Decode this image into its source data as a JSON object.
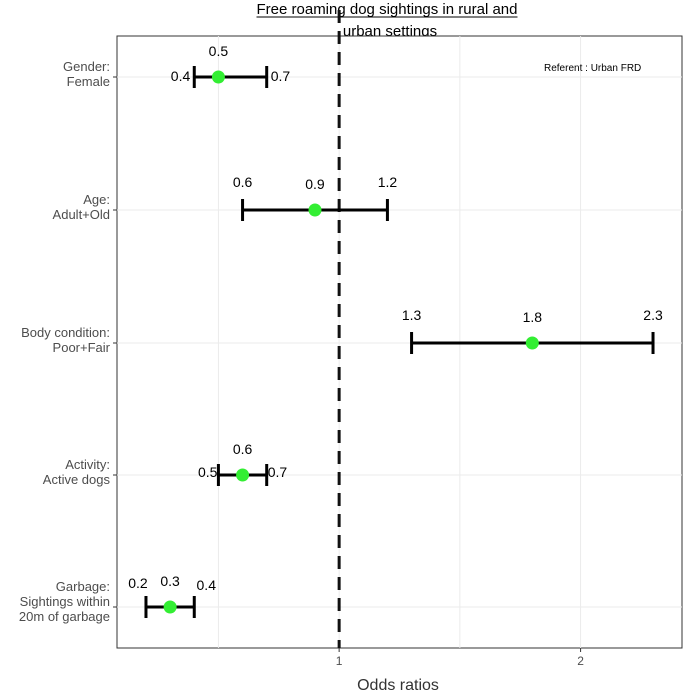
{
  "chart_data": {
    "type": "forest",
    "title_lines": [
      "Free roaming dog sightings in rural and",
      "urban settings"
    ],
    "xlabel": "Odds ratios",
    "xlim": [
      0.08,
      2.42
    ],
    "x_ticks": [
      1,
      2
    ],
    "reference_line": 1,
    "referent_note": "Referent : Urban FRD",
    "point_color": "#33ee33",
    "categories": [
      {
        "label_lines": [
          "Gender:",
          "Female"
        ],
        "estimate": 0.5,
        "lower": 0.4,
        "upper": 0.7,
        "estimate_text": "0.5",
        "lower_text": "0.4",
        "upper_text": "0.7"
      },
      {
        "label_lines": [
          "Age:",
          "Adult+Old"
        ],
        "estimate": 0.9,
        "lower": 0.6,
        "upper": 1.2,
        "estimate_text": "0.9",
        "lower_text": "0.6",
        "upper_text": "1.2"
      },
      {
        "label_lines": [
          "Body condition:",
          "Poor+Fair"
        ],
        "estimate": 1.8,
        "lower": 1.3,
        "upper": 2.3,
        "estimate_text": "1.8",
        "lower_text": "1.3",
        "upper_text": "2.3"
      },
      {
        "label_lines": [
          "Activity:",
          "Active dogs"
        ],
        "estimate": 0.6,
        "lower": 0.5,
        "upper": 0.7,
        "estimate_text": "0.6",
        "lower_text": "0.5",
        "upper_text": "0.7"
      },
      {
        "label_lines": [
          "Garbage:",
          "Sightings within",
          "20m of garbage"
        ],
        "estimate": 0.3,
        "lower": 0.2,
        "upper": 0.4,
        "estimate_text": "0.3",
        "lower_text": "0.2",
        "upper_text": "0.4"
      }
    ]
  }
}
